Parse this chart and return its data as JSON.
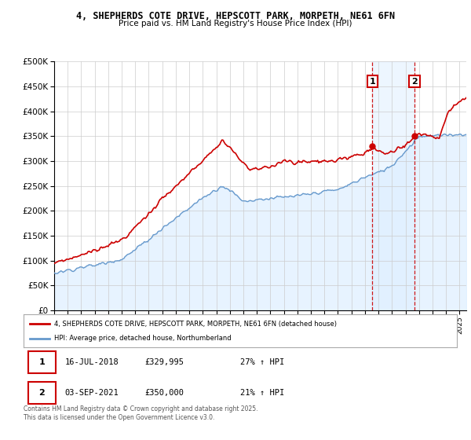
{
  "title_line1": "4, SHEPHERDS COTE DRIVE, HEPSCOTT PARK, MORPETH, NE61 6FN",
  "title_line2": "Price paid vs. HM Land Registry's House Price Index (HPI)",
  "ylim": [
    0,
    500000
  ],
  "yticks": [
    0,
    50000,
    100000,
    150000,
    200000,
    250000,
    300000,
    350000,
    400000,
    450000,
    500000
  ],
  "ytick_labels": [
    "£0",
    "£50K",
    "£100K",
    "£150K",
    "£200K",
    "£250K",
    "£300K",
    "£350K",
    "£400K",
    "£450K",
    "£500K"
  ],
  "xlim_start": 1995.5,
  "xlim_end": 2025.5,
  "red_color": "#cc0000",
  "blue_color": "#6699cc",
  "blue_fill_color": "#ddeeff",
  "marker1_x": 2018.54,
  "marker1_y": 329995,
  "marker2_x": 2021.67,
  "marker2_y": 350000,
  "marker1_label": "1",
  "marker2_label": "2",
  "legend_entry1": "4, SHEPHERDS COTE DRIVE, HEPSCOTT PARK, MORPETH, NE61 6FN (detached house)",
  "legend_entry2": "HPI: Average price, detached house, Northumberland",
  "table_row1": [
    "1",
    "16-JUL-2018",
    "£329,995",
    "27% ↑ HPI"
  ],
  "table_row2": [
    "2",
    "03-SEP-2021",
    "£350,000",
    "21% ↑ HPI"
  ],
  "footnote": "Contains HM Land Registry data © Crown copyright and database right 2025.\nThis data is licensed under the Open Government Licence v3.0.",
  "bg_color": "#ffffff",
  "grid_color": "#cccccc",
  "vline1_x": 2018.54,
  "vline2_x": 2021.67,
  "vspan_color": "#ddeeff"
}
